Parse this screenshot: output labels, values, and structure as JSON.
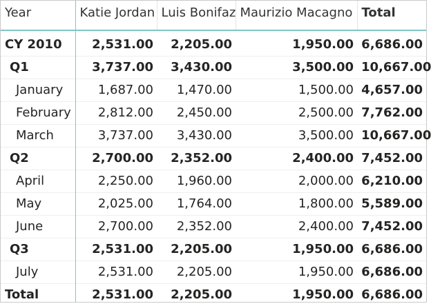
{
  "header": {
    "row_header": "Year",
    "columns": [
      "Katie Jordan",
      "Luis Bonifaz",
      "Maurizio Macagno",
      "Total"
    ]
  },
  "rows": [
    {
      "level": "year",
      "label": "CY 2010",
      "values": [
        "2,531.00",
        "2,205.00",
        "1,950.00",
        "6,686.00"
      ]
    },
    {
      "level": "q",
      "label": "Q1",
      "values": [
        "3,737.00",
        "3,430.00",
        "3,500.00",
        "10,667.00"
      ]
    },
    {
      "level": "m",
      "label": "January",
      "values": [
        "1,687.00",
        "1,470.00",
        "1,500.00",
        "4,657.00"
      ]
    },
    {
      "level": "m",
      "label": "February",
      "values": [
        "2,812.00",
        "2,450.00",
        "2,500.00",
        "7,762.00"
      ]
    },
    {
      "level": "m",
      "label": "March",
      "values": [
        "3,737.00",
        "3,430.00",
        "3,500.00",
        "10,667.00"
      ]
    },
    {
      "level": "q",
      "label": "Q2",
      "values": [
        "2,700.00",
        "2,352.00",
        "2,400.00",
        "7,452.00"
      ]
    },
    {
      "level": "m",
      "label": "April",
      "values": [
        "2,250.00",
        "1,960.00",
        "2,000.00",
        "6,210.00"
      ]
    },
    {
      "level": "m",
      "label": "May",
      "values": [
        "2,025.00",
        "1,764.00",
        "1,800.00",
        "5,589.00"
      ]
    },
    {
      "level": "m",
      "label": "June",
      "values": [
        "2,700.00",
        "2,352.00",
        "2,400.00",
        "7,452.00"
      ]
    },
    {
      "level": "q",
      "label": "Q3",
      "values": [
        "2,531.00",
        "2,205.00",
        "1,950.00",
        "6,686.00"
      ]
    },
    {
      "level": "m",
      "label": "July",
      "values": [
        "2,531.00",
        "2,205.00",
        "1,950.00",
        "6,686.00"
      ]
    }
  ],
  "footer": {
    "label": "Total",
    "values": [
      "2,531.00",
      "2,205.00",
      "1,950.00",
      "6,686.00"
    ]
  },
  "colors": {
    "header_rule": "#7fc5c5",
    "text": "#252423"
  }
}
